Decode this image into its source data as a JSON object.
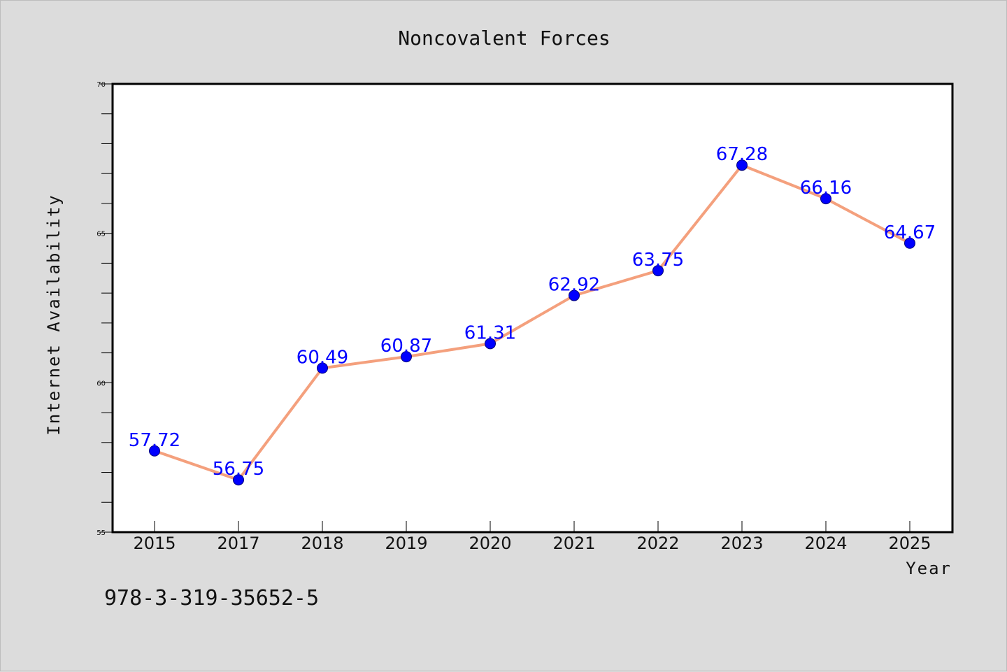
{
  "chart_data": {
    "type": "line",
    "title": "Noncovalent Forces",
    "xlabel": "Year",
    "ylabel": "Internet Availability",
    "categories": [
      "2015",
      "2017",
      "2018",
      "2019",
      "2020",
      "2021",
      "2022",
      "2023",
      "2024",
      "2025"
    ],
    "series": [
      {
        "values": [
          57.72,
          56.75,
          60.49,
          60.87,
          61.31,
          62.92,
          63.75,
          67.28,
          66.16,
          64.67
        ],
        "labels": [
          "57.72",
          "56.75",
          "60.49",
          "60.87",
          "61.31",
          "62.92",
          "63.75",
          "67.28",
          "66.16",
          "64.67"
        ],
        "line_color": "#f4a07d",
        "marker_color": "#0000ff"
      }
    ],
    "ylim": [
      55,
      70
    ],
    "yticks": [
      "55",
      "60",
      "65",
      "70"
    ],
    "grid": false,
    "legend": "none"
  },
  "footer": {
    "isbn": "978-3-319-35652-5"
  },
  "colors": {
    "background": "#dcdcdc",
    "plot_background": "#ffffff",
    "line": "#f4a07d",
    "marker": "#0000ff",
    "data_label": "#0000ff"
  }
}
